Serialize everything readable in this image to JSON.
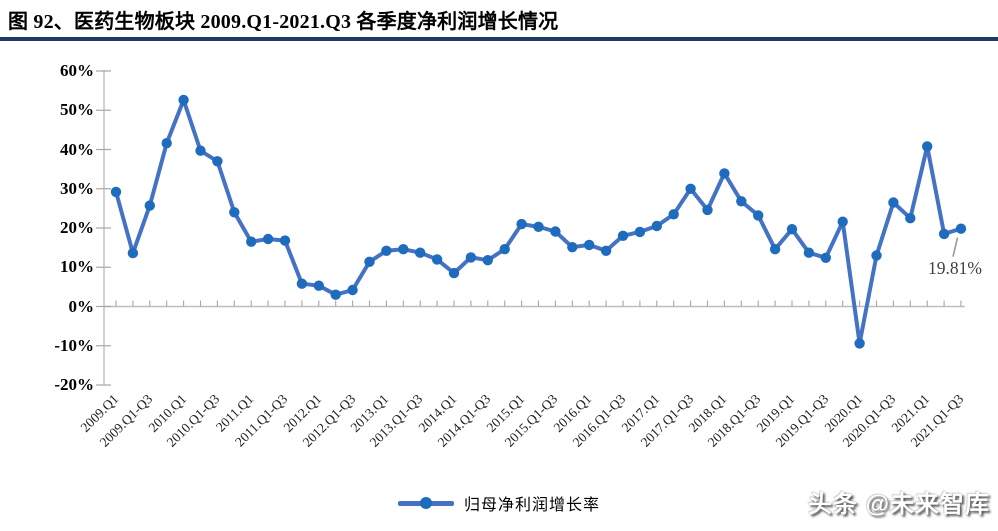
{
  "figure": {
    "title": "图 92、医药生物板块 2009.Q1-2021.Q3 各季度净利润增长情况",
    "accent_rule_color": "#1F3864"
  },
  "watermark": "头条 @未来智库",
  "chart_data": {
    "type": "line",
    "title": "图 92、医药生物板块 2009.Q1-2021.Q3 各季度净利润增长情况",
    "legend": "归母净利润增长率",
    "legend_position": "bottom-center",
    "grid": false,
    "y_axis": {
      "min": -20,
      "max": 60,
      "step": 10,
      "tick_values": [
        60,
        50,
        40,
        30,
        20,
        10,
        0,
        -10,
        -20
      ],
      "tick_labels": [
        "60%",
        "50%",
        "40%",
        "30%",
        "20%",
        "10%",
        "0%",
        "-10%",
        "-20%"
      ]
    },
    "x_tick_labels": [
      "2009.Q1",
      "2009.Q1-Q3",
      "2010.Q1",
      "2010.Q1-Q3",
      "2011.Q1",
      "2011.Q1-Q3",
      "2012.Q1",
      "2012.Q1-Q3",
      "2013.Q1",
      "2013.Q1-Q3",
      "2014.Q1",
      "2014.Q1-Q3",
      "2015.Q1",
      "2015.Q1-Q3",
      "2016.Q1",
      "2016.Q1-Q3",
      "2017.Q1",
      "2017.Q1-Q3",
      "2018.Q1",
      "2018.Q1-Q3",
      "2019.Q1",
      "2019.Q1-Q3",
      "2020.Q1",
      "2020.Q1-Q3",
      "2021.Q1",
      "2021.Q1-Q3"
    ],
    "x_tick_label_every_n_points": 2,
    "series": [
      {
        "name": "归母净利润增长率",
        "unit": "%",
        "values": [
          29.2,
          13.6,
          25.7,
          41.6,
          52.6,
          39.7,
          37.0,
          24.0,
          16.5,
          17.2,
          16.8,
          5.8,
          5.3,
          3.0,
          4.2,
          11.4,
          14.2,
          14.6,
          13.7,
          12.0,
          8.5,
          12.5,
          11.8,
          14.6,
          21.0,
          20.3,
          19.1,
          15.1,
          15.7,
          14.2,
          18.0,
          19.0,
          20.5,
          23.5,
          30.0,
          24.6,
          33.9,
          26.8,
          23.2,
          14.6,
          19.7,
          13.7,
          12.4,
          21.6,
          -9.4,
          13.0,
          26.5,
          22.5,
          40.8,
          18.5,
          19.81
        ]
      }
    ],
    "annotation": {
      "text": "19.81%",
      "point_index": 50,
      "value": 19.81
    },
    "colors": {
      "line": "#4472C4",
      "marker": "#1F6BBE",
      "axis": "#BFBFBF",
      "tick": "#A6A6A6",
      "leader": "#999999"
    }
  }
}
